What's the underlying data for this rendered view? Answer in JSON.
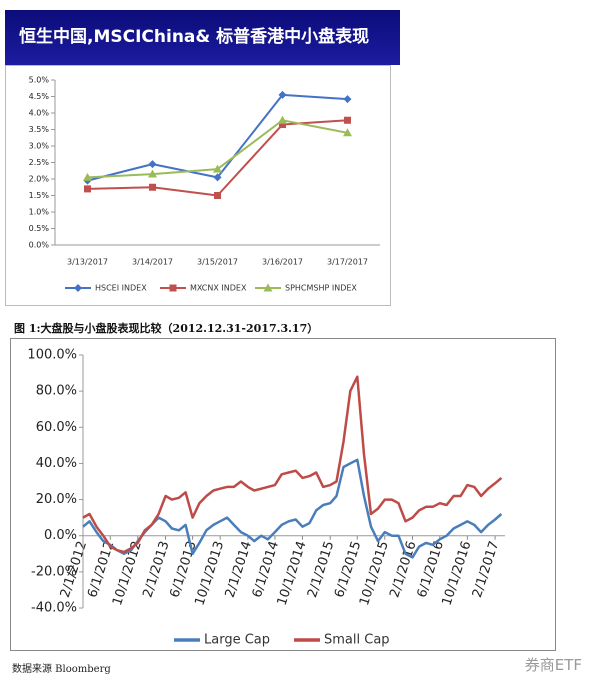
{
  "header": {
    "title": "恒生中国,MSCIChina& 标普香港中小盘表现"
  },
  "caption": "图 1:大盘股与小盘股表现比较（2012.12.31-2017.3.17）",
  "source": "数据来源 Bloomberg",
  "watermark": "券商ETF",
  "chart_data": [
    {
      "type": "line",
      "categories": [
        "3/13/2017",
        "3/14/2017",
        "3/15/2017",
        "3/16/2017",
        "3/17/2017"
      ],
      "series": [
        {
          "name": "HSCEI INDEX",
          "color": "#4472c4",
          "marker": "diamond",
          "values": [
            1.95,
            2.45,
            2.05,
            4.55,
            4.42
          ]
        },
        {
          "name": "MXCNX INDEX",
          "color": "#c0504d",
          "marker": "square",
          "values": [
            1.7,
            1.75,
            1.5,
            3.65,
            3.78
          ]
        },
        {
          "name": "SPHCMSHP INDEX",
          "color": "#9bbb59",
          "marker": "triangle",
          "values": [
            2.05,
            2.15,
            2.3,
            3.78,
            3.4
          ]
        }
      ],
      "ylim": [
        0,
        5
      ],
      "yticks": [
        {
          "value": 0,
          "label": "0.0%"
        },
        {
          "value": 0.5,
          "label": "0.5%"
        },
        {
          "value": 1,
          "label": "1.0%"
        },
        {
          "value": 1.5,
          "label": "1.5%"
        },
        {
          "value": 2,
          "label": "2.0%"
        },
        {
          "value": 2.5,
          "label": "2.5%"
        },
        {
          "value": 3,
          "label": "3.0%"
        },
        {
          "value": 3.5,
          "label": "3.5%"
        },
        {
          "value": 4,
          "label": "4.0%"
        },
        {
          "value": 4.5,
          "label": "4.5%"
        },
        {
          "value": 5,
          "label": "5.0%"
        }
      ],
      "legend": "bottom"
    },
    {
      "type": "line",
      "x": [
        "2012-02-01",
        "2012-03-01",
        "2012-04-01",
        "2012-05-01",
        "2012-06-01",
        "2012-07-01",
        "2012-08-01",
        "2012-09-01",
        "2012-10-01",
        "2012-11-01",
        "2012-12-01",
        "2013-01-01",
        "2013-02-01",
        "2013-03-01",
        "2013-04-01",
        "2013-05-01",
        "2013-06-01",
        "2013-07-01",
        "2013-08-01",
        "2013-09-01",
        "2013-10-01",
        "2013-11-01",
        "2013-12-01",
        "2014-01-01",
        "2014-02-01",
        "2014-03-01",
        "2014-04-01",
        "2014-05-01",
        "2014-06-01",
        "2014-07-01",
        "2014-08-01",
        "2014-09-01",
        "2014-10-01",
        "2014-11-01",
        "2014-12-01",
        "2015-01-01",
        "2015-02-01",
        "2015-03-01",
        "2015-04-01",
        "2015-05-01",
        "2015-06-01",
        "2015-07-01",
        "2015-08-01",
        "2015-09-01",
        "2015-10-01",
        "2015-11-01",
        "2015-12-01",
        "2016-01-01",
        "2016-02-01",
        "2016-03-01",
        "2016-04-01",
        "2016-05-01",
        "2016-06-01",
        "2016-07-01",
        "2016-08-01",
        "2016-09-01",
        "2016-10-01",
        "2016-11-01",
        "2016-12-01",
        "2017-01-01",
        "2017-02-01",
        "2017-03-01"
      ],
      "series": [
        {
          "name": "Large Cap",
          "color": "#4a7ebb",
          "values": [
            5,
            8,
            2,
            -3,
            -5,
            -8,
            -10,
            -8,
            -3,
            2,
            6,
            10,
            8,
            4,
            3,
            6,
            -10,
            -4,
            3,
            6,
            8,
            10,
            6,
            2,
            0,
            -3,
            0,
            -2,
            2,
            6,
            8,
            9,
            5,
            7,
            14,
            17,
            18,
            22,
            38,
            40,
            42,
            22,
            5,
            -3,
            2,
            0,
            0,
            -10,
            -12,
            -6,
            -4,
            -5,
            -2,
            0,
            4,
            6,
            8,
            6,
            2,
            6,
            9,
            12
          ]
        },
        {
          "name": "Small Cap",
          "color": "#be4b48",
          "values": [
            10,
            12,
            5,
            0,
            -6,
            -8,
            -9,
            -7,
            -4,
            3,
            6,
            12,
            22,
            20,
            21,
            24,
            10,
            18,
            22,
            25,
            26,
            27,
            27,
            30,
            27,
            25,
            26,
            27,
            28,
            34,
            35,
            36,
            32,
            33,
            35,
            27,
            28,
            30,
            52,
            80,
            88,
            45,
            12,
            15,
            20,
            20,
            18,
            8,
            10,
            14,
            16,
            16,
            18,
            17,
            22,
            22,
            28,
            27,
            22,
            26,
            29,
            32
          ]
        }
      ],
      "xlim": [
        "2012-02-01",
        "2017-03-17"
      ],
      "xticks": [
        {
          "value": "2012-02-01",
          "label": "2/1/2012"
        },
        {
          "value": "2012-06-01",
          "label": "6/1/2012"
        },
        {
          "value": "2012-10-01",
          "label": "10/1/2012"
        },
        {
          "value": "2013-02-01",
          "label": "2/1/2013"
        },
        {
          "value": "2013-06-01",
          "label": "6/1/2013"
        },
        {
          "value": "2013-10-01",
          "label": "10/1/2013"
        },
        {
          "value": "2014-02-01",
          "label": "2/1/2014"
        },
        {
          "value": "2014-06-01",
          "label": "6/1/2014"
        },
        {
          "value": "2014-10-01",
          "label": "10/1/2014"
        },
        {
          "value": "2015-02-01",
          "label": "2/1/2015"
        },
        {
          "value": "2015-06-01",
          "label": "6/1/2015"
        },
        {
          "value": "2015-10-01",
          "label": "10/1/2015"
        },
        {
          "value": "2016-02-01",
          "label": "2/1/2016"
        },
        {
          "value": "2016-06-01",
          "label": "6/1/2016"
        },
        {
          "value": "2016-10-01",
          "label": "10/1/2016"
        },
        {
          "value": "2017-02-01",
          "label": "2/1/2017"
        }
      ],
      "ylim": [
        -40,
        100
      ],
      "yticks": [
        {
          "value": 100,
          "label": "100.0%"
        },
        {
          "value": 80,
          "label": "80.0%"
        },
        {
          "value": 60,
          "label": "60.0%"
        },
        {
          "value": 40,
          "label": "40.0%"
        },
        {
          "value": 20,
          "label": "20.0%"
        },
        {
          "value": 0,
          "label": "0.0%"
        },
        {
          "value": -20,
          "label": "-20.0%"
        },
        {
          "value": -40,
          "label": "-40.0%"
        }
      ],
      "legend": "bottom"
    }
  ]
}
